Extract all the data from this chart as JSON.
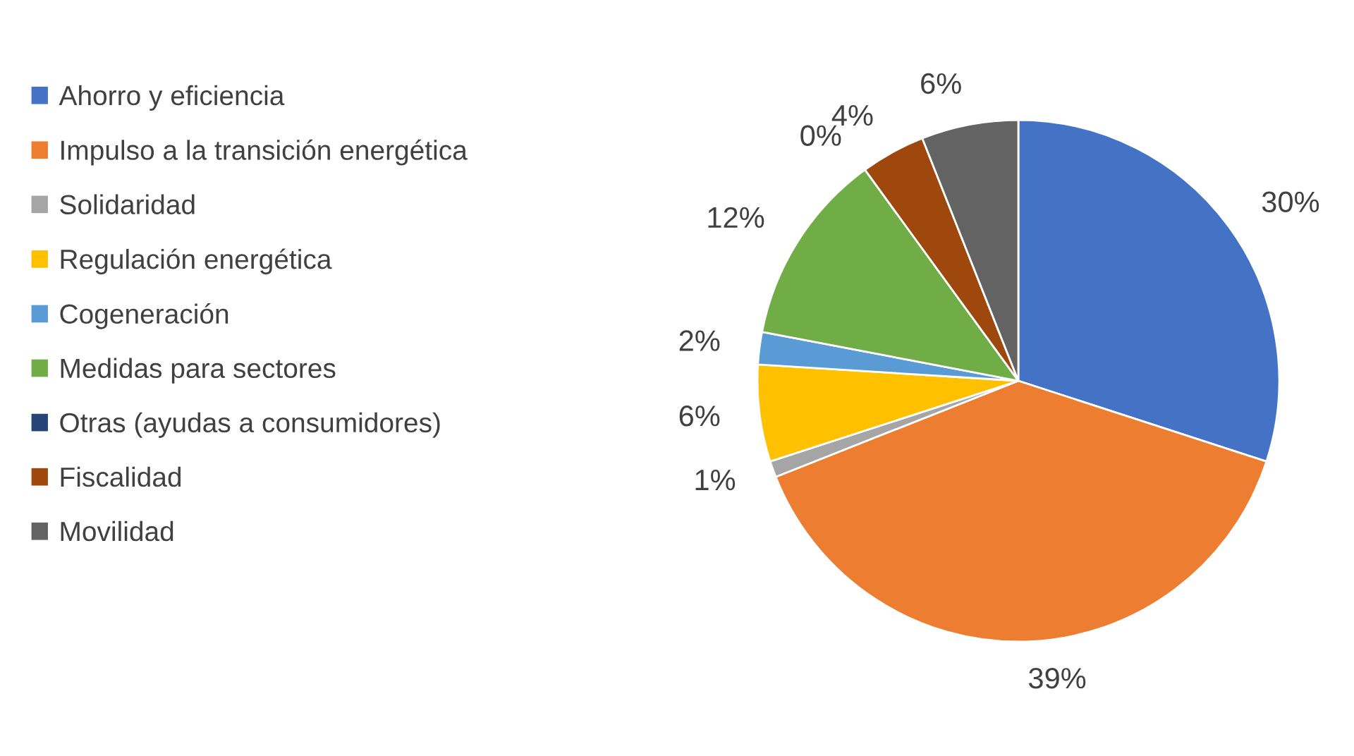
{
  "chart_data": {
    "type": "pie",
    "categories": [
      "Ahorro y eficiencia",
      "Impulso a la transición energética",
      "Solidaridad",
      "Regulación energética",
      "Cogeneración",
      "Medidas para sectores",
      "Otras (ayudas a consumidores)",
      "Fiscalidad",
      "Movilidad"
    ],
    "values": [
      30,
      39,
      1,
      6,
      2,
      12,
      0,
      4,
      6
    ],
    "value_labels": [
      "30%",
      "39%",
      "1%",
      "6%",
      "2%",
      "12%",
      "0%",
      "4%",
      "6%"
    ],
    "colors": [
      "#4472c4",
      "#ed7d31",
      "#a5a5a5",
      "#ffc000",
      "#5b9bd5",
      "#70ad47",
      "#264478",
      "#9e480e",
      "#636363"
    ],
    "legend": "left"
  }
}
